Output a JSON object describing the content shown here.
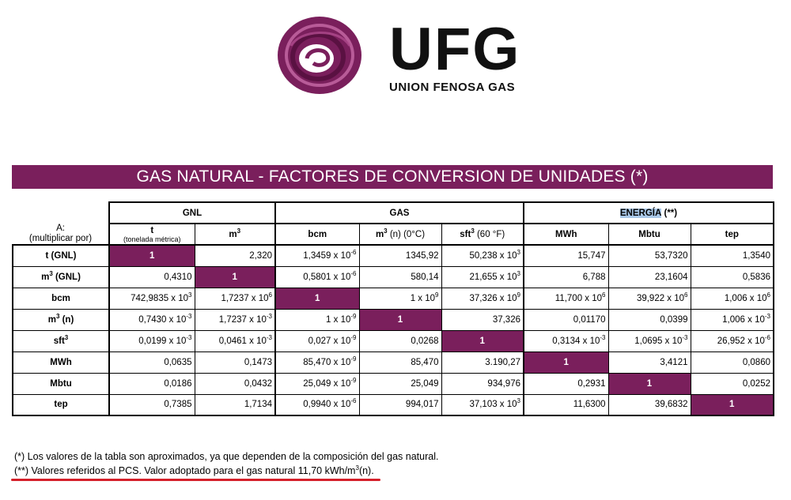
{
  "logo": {
    "name": "UFG",
    "subtitle": "UNION FENOSA GAS",
    "mark_color": "#7a1f5c"
  },
  "title": "GAS NATURAL - FACTORES DE CONVERSION DE UNIDADES (*)",
  "corner": {
    "line1": "A:",
    "line2": "(multiplicar por)"
  },
  "groups": {
    "gnl": "GNL",
    "gas": "GAS",
    "energia": "ENERGÍA",
    "energia_suffix": "(**)"
  },
  "columns": {
    "t": "t",
    "t_sub": "(tonelada métrica)",
    "m3": "m",
    "bcm": "bcm",
    "m3n": "m",
    "m3n_suffix": "(n) (0°C)",
    "sft3": "sft",
    "sft3_suffix": "(60 °F)",
    "mwh": "MWh",
    "mbtu": "Mbtu",
    "tep": "tep",
    "sup3": "3"
  },
  "rows": [
    {
      "label": "t (GNL)",
      "c": [
        [
          "1",
          ""
        ],
        [
          "2,320",
          ""
        ],
        [
          "1,3459 x 10",
          "-6"
        ],
        [
          "1345,92",
          ""
        ],
        [
          "50,238 x 10",
          "3"
        ],
        [
          "15,747",
          ""
        ],
        [
          "53,7320",
          ""
        ],
        [
          "1,3540",
          ""
        ]
      ]
    },
    {
      "label": "m",
      "label_sup": "3",
      "label_suffix": " (GNL)",
      "c": [
        [
          "0,4310",
          ""
        ],
        [
          "1",
          ""
        ],
        [
          "0,5801 x 10",
          "-6"
        ],
        [
          "580,14",
          ""
        ],
        [
          "21,655 x 10",
          "3"
        ],
        [
          "6,788",
          ""
        ],
        [
          "23,1604",
          ""
        ],
        [
          "0,5836",
          ""
        ]
      ]
    },
    {
      "label": "bcm",
      "c": [
        [
          "742,9835 x 10",
          "3"
        ],
        [
          "1,7237 x 10",
          "6"
        ],
        [
          "1",
          ""
        ],
        [
          "1 x 10",
          "9"
        ],
        [
          "37,326 x 10",
          "9"
        ],
        [
          "11,700 x 10",
          "6"
        ],
        [
          "39,922 x 10",
          "6"
        ],
        [
          "1,006 x 10",
          "6"
        ]
      ]
    },
    {
      "label": "m",
      "label_sup": "3",
      "label_suffix": " (n)",
      "c": [
        [
          "0,7430  x 10",
          "-3"
        ],
        [
          "1,7237 x 10",
          "-3"
        ],
        [
          "1 x 10",
          "-9"
        ],
        [
          "1",
          ""
        ],
        [
          "37,326",
          ""
        ],
        [
          "0,01170",
          ""
        ],
        [
          "0,0399",
          ""
        ],
        [
          "1,006 x 10",
          "-3"
        ]
      ]
    },
    {
      "label": "sft",
      "label_sup": "3",
      "label_suffix": "",
      "c": [
        [
          "0,0199  x 10",
          "-3"
        ],
        [
          "0,0461 x 10",
          "-3"
        ],
        [
          "0,027 x 10",
          "-9"
        ],
        [
          "0,0268",
          ""
        ],
        [
          "1",
          ""
        ],
        [
          "0,3134 x 10",
          "-3"
        ],
        [
          "1,0695 x 10",
          "-3"
        ],
        [
          "26,952 x 10",
          "-6"
        ]
      ]
    },
    {
      "label": "MWh",
      "c": [
        [
          "0,0635",
          ""
        ],
        [
          "0,1473",
          ""
        ],
        [
          "85,470 x 10",
          "-9"
        ],
        [
          "85,470",
          ""
        ],
        [
          "3.190,27",
          ""
        ],
        [
          "1",
          ""
        ],
        [
          "3,4121",
          ""
        ],
        [
          "0,0860",
          ""
        ]
      ]
    },
    {
      "label": "Mbtu",
      "c": [
        [
          "0,0186",
          ""
        ],
        [
          "0,0432",
          ""
        ],
        [
          "25,049 x 10",
          "-9"
        ],
        [
          "25,049",
          ""
        ],
        [
          "934,976",
          ""
        ],
        [
          "0,2931",
          ""
        ],
        [
          "1",
          ""
        ],
        [
          "0,0252",
          ""
        ]
      ]
    },
    {
      "label": "tep",
      "c": [
        [
          "0,7385",
          ""
        ],
        [
          "1,7134",
          ""
        ],
        [
          "0,9940 x 10",
          "-6"
        ],
        [
          "994,017",
          ""
        ],
        [
          "37,103 x 10",
          "3"
        ],
        [
          "11,6300",
          ""
        ],
        [
          "39,6832",
          ""
        ],
        [
          "1",
          ""
        ]
      ]
    }
  ],
  "notes": {
    "n1": "(*) Los valores de la tabla son aproximados, ya que dependen de la composición del gas natural.",
    "n2_prefix": "(**) Valores referidos al PCS. Valor adoptado para el gas natural 11,70 kWh/m",
    "n2_sup": "3",
    "n2_suffix": "(n)."
  },
  "colors": {
    "accent": "#7a1f5c",
    "highlight": "#a9c8e8",
    "underline": "#d5202a"
  }
}
